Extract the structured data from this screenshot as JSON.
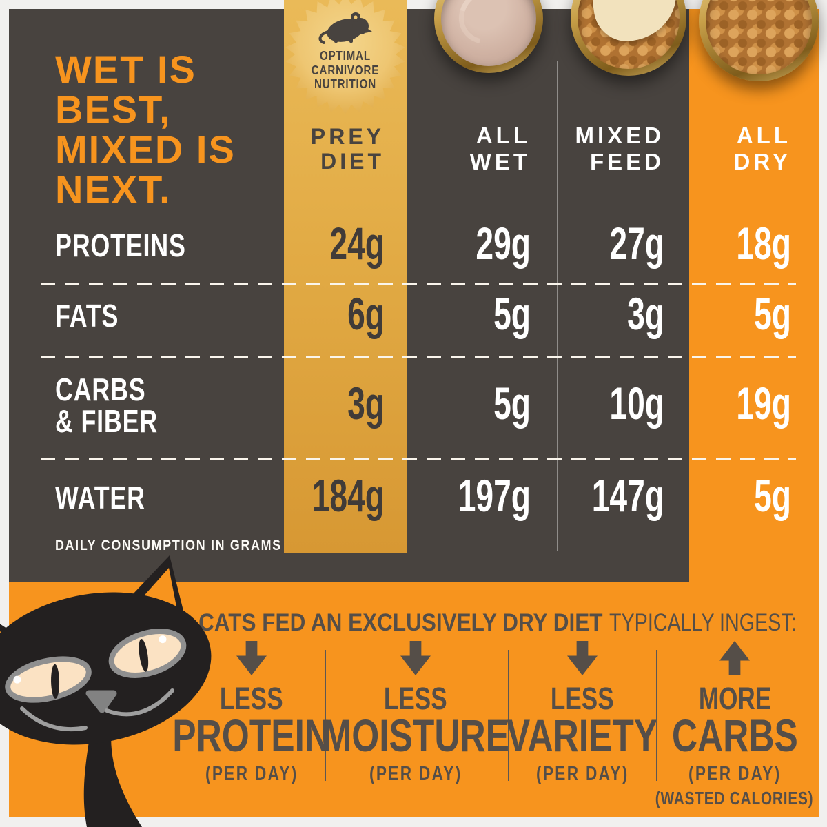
{
  "title": "WET IS\nBEST,\nMIXED IS\nNEXT.",
  "badge": {
    "line1": "OPTIMAL",
    "line2": "CARNIVORE",
    "line3": "NUTRITION",
    "icon": "mouse-icon"
  },
  "columns": [
    {
      "id": "prey",
      "line1": "PREY",
      "line2": "DIET",
      "bowl": null
    },
    {
      "id": "wet",
      "line1": "ALL",
      "line2": "WET",
      "bowl": "wet-pate-bowl"
    },
    {
      "id": "mixed",
      "line1": "MIXED",
      "line2": "FEED",
      "bowl": "mixed-kibble-pate-bowl"
    },
    {
      "id": "dry",
      "line1": "ALL",
      "line2": "DRY",
      "bowl": "dry-kibble-bowl"
    }
  ],
  "table": {
    "rows": [
      {
        "label": "PROTEINS",
        "values": [
          "24g",
          "29g",
          "27g",
          "18g"
        ]
      },
      {
        "label": "FATS",
        "values": [
          "6g",
          "5g",
          "3g",
          "5g"
        ]
      },
      {
        "label": "CARBS\n& FIBER",
        "values": [
          "3g",
          "5g",
          "10g",
          "19g"
        ]
      },
      {
        "label": "WATER",
        "values": [
          "184g",
          "197g",
          "147g",
          "5g"
        ]
      }
    ],
    "footnote": "DAILY CONSUMPTION IN GRAMS"
  },
  "bottom": {
    "heading_bold": "CATS FED AN EXCLUSIVELY DRY DIET",
    "heading_rest": "TYPICALLY INGEST:",
    "items": [
      {
        "arrow": "down",
        "qualifier": "LESS",
        "nutrient": "PROTEIN",
        "note": "(PER DAY)"
      },
      {
        "arrow": "down",
        "qualifier": "LESS",
        "nutrient": "MOISTURE",
        "note": "(PER DAY)"
      },
      {
        "arrow": "down",
        "qualifier": "LESS",
        "nutrient": "VARIETY",
        "note": "(PER DAY)"
      },
      {
        "arrow": "up",
        "qualifier": "MORE",
        "nutrient": "CARBS",
        "note": "(PER DAY)",
        "note2": "(WASTED CALORIES)"
      }
    ]
  },
  "colors": {
    "orange": "#f7941e",
    "dark_panel": "#48433f",
    "gold_top": "#eaba58",
    "gold_bottom": "#d79833",
    "badge_gold": "#eec672",
    "text_dark": "#48433f",
    "bottom_text": "#554e48",
    "white": "#ffffff"
  }
}
